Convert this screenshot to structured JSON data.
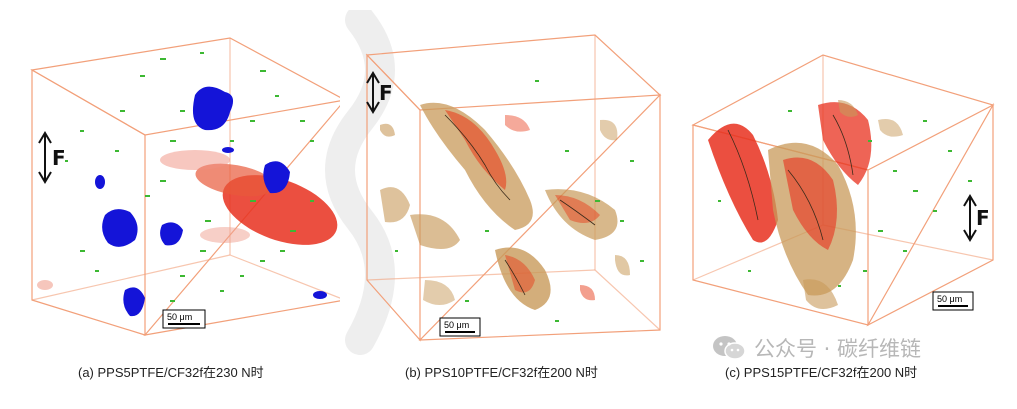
{
  "panels": [
    {
      "caption": "(a) PPS5PTFE/CF32f在230 N时",
      "scale_bar": "50 μm",
      "force": "F"
    },
    {
      "caption": "(b) PPS10PTFE/CF32f在200 N时",
      "scale_bar": "50 μm",
      "force": "F"
    },
    {
      "caption": "(c) PPS15PTFE/CF32f在200 N时",
      "scale_bar": "50 μm",
      "force": "F"
    }
  ],
  "watermark": {
    "text": "公众号 · 碳纤维链",
    "icon": "wechat-icon"
  },
  "colors": {
    "box": "#f2a07a",
    "red": "#e8301e",
    "blue": "#1414d8",
    "green": "#3cb832",
    "tan": "#c89a5a"
  }
}
